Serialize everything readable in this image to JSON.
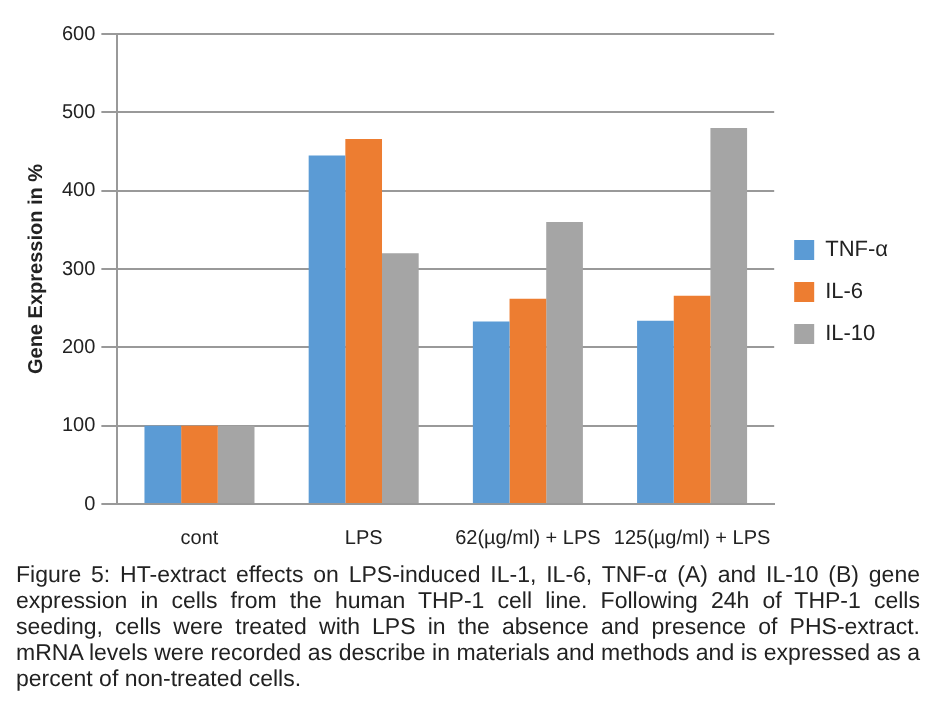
{
  "chart_data": {
    "type": "bar",
    "ylabel": "Gene Expression in %",
    "categories": [
      "cont",
      "LPS",
      "62(µg/ml) + LPS",
      "125(µg/ml) + LPS"
    ],
    "series": [
      {
        "name": "TNF-α",
        "color": "#5b9bd5",
        "values": [
          100,
          445,
          233,
          234
        ]
      },
      {
        "name": "IL-6",
        "color": "#ed7d31",
        "values": [
          100,
          466,
          262,
          266
        ]
      },
      {
        "name": "IL-10",
        "color": "#a5a5a5",
        "values": [
          100,
          320,
          360,
          480
        ]
      }
    ],
    "ylim": [
      0,
      600
    ],
    "yticks": [
      0,
      100,
      200,
      300,
      400,
      500,
      600
    ],
    "grid": "y",
    "legend": "right",
    "annotations": [
      "Figure 5: HT-extract effects on LPS-induced IL-1, IL-6, TNF-α (A) and IL-10 (B) gene expression in cells from the human THP-1 cell line. Following 24h of THP-1 cells seeding, cells were treated with LPS in the absence and presence of PHS-extract. mRNA levels were recorded as describe in materials and methods and is expressed as a percent of non-treated cells."
    ]
  }
}
